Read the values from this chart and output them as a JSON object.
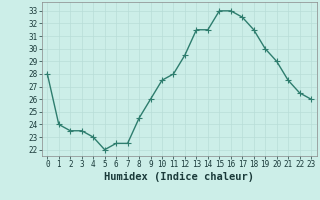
{
  "x": [
    0,
    1,
    2,
    3,
    4,
    5,
    6,
    7,
    8,
    9,
    10,
    11,
    12,
    13,
    14,
    15,
    16,
    17,
    18,
    19,
    20,
    21,
    22,
    23
  ],
  "y": [
    28,
    24,
    23.5,
    23.5,
    23,
    22,
    22.5,
    22.5,
    24.5,
    26,
    27.5,
    28,
    29.5,
    31.5,
    31.5,
    33,
    33,
    32.5,
    31.5,
    30,
    29,
    27.5,
    26.5,
    26
  ],
  "line_color": "#2e7d6e",
  "marker": "+",
  "bg_color": "#cceee8",
  "grid_color": "#b8ddd8",
  "xlabel": "Humidex (Indice chaleur)",
  "xlim": [
    -0.5,
    23.5
  ],
  "ylim": [
    21.5,
    33.7
  ],
  "yticks": [
    22,
    23,
    24,
    25,
    26,
    27,
    28,
    29,
    30,
    31,
    32,
    33
  ],
  "xticks": [
    0,
    1,
    2,
    3,
    4,
    5,
    6,
    7,
    8,
    9,
    10,
    11,
    12,
    13,
    14,
    15,
    16,
    17,
    18,
    19,
    20,
    21,
    22,
    23
  ],
  "xtick_labels": [
    "0",
    "1",
    "2",
    "3",
    "4",
    "5",
    "6",
    "7",
    "8",
    "9",
    "10",
    "11",
    "12",
    "13",
    "14",
    "15",
    "16",
    "17",
    "18",
    "19",
    "20",
    "21",
    "22",
    "23"
  ],
  "tick_fontsize": 5.5,
  "xlabel_fontsize": 7.5,
  "linewidth": 1.0,
  "markersize": 4,
  "spine_color": "#888888"
}
